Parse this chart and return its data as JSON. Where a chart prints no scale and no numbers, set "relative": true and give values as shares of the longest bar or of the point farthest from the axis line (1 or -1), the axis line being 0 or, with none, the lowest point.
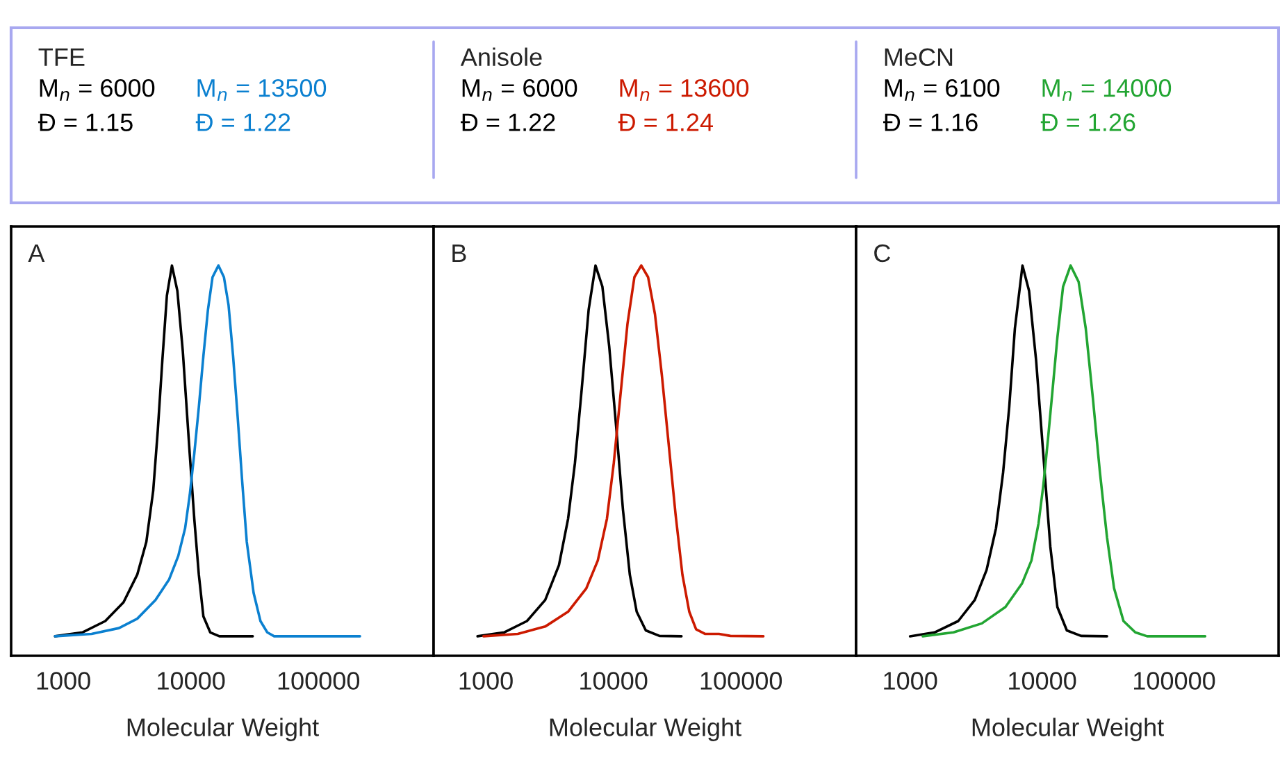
{
  "chart_data": [
    {
      "type": "line",
      "relative": true,
      "log": "x",
      "xlim": [
        390,
        800000
      ],
      "xticks": [
        1000,
        10000,
        100000
      ],
      "xlabel": "Molecular Weight",
      "legend": "top",
      "legend_title": "TFE",
      "annotations": [
        "A"
      ],
      "series": [
        {
          "name": "M$_{n}$ = 6000\nĐ = 1.15",
          "color": "#000000",
          "x": [
            862,
            1413,
            2134,
            2966,
            3800,
            4479,
            5070,
            5503,
            5975,
            6490,
            7107,
            7839,
            8650,
            9795,
            10640,
            11550,
            12540,
            14190,
            16740,
            30550
          ],
          "values": [
            0.05,
            0.06,
            0.089,
            0.137,
            0.208,
            0.292,
            0.423,
            0.577,
            0.756,
            0.923,
            1,
            0.935,
            0.78,
            0.518,
            0.351,
            0.208,
            0.101,
            0.06,
            0.05,
            0.05
          ]
        },
        {
          "name": "M$_{n}$ = 13500\nĐ = 1.22",
          "color": "#0b80d0",
          "x": [
            862,
            1667,
            2733,
            3800,
            5280,
            6761,
            7973,
            9020,
            9795,
            10640,
            11550,
            12540,
            13620,
            14790,
            16460,
            18170,
            19740,
            21430,
            23270,
            25270,
            27440,
            31050,
            35130,
            39720,
            44970,
            211700
          ],
          "values": [
            0.05,
            0.056,
            0.071,
            0.095,
            0.143,
            0.196,
            0.256,
            0.327,
            0.411,
            0.518,
            0.637,
            0.768,
            0.887,
            0.97,
            1,
            0.97,
            0.899,
            0.768,
            0.613,
            0.446,
            0.292,
            0.161,
            0.089,
            0.06,
            0.05,
            0.05
          ]
        }
      ]
    },
    {
      "type": "line",
      "relative": true,
      "log": "x",
      "xlim": [
        390,
        800000
      ],
      "xticks": [
        1000,
        10000,
        100000
      ],
      "xlabel": "Molecular Weight",
      "legend": "top",
      "legend_title": "Anisole",
      "annotations": [
        "B"
      ],
      "series": [
        {
          "name": "M$_{n}$ = 6000\nĐ = 1.22",
          "color": "#000000",
          "x": [
            862,
            1391,
            2102,
            2924,
            3746,
            4418,
            5000,
            5657,
            6404,
            7245,
            8204,
            9285,
            10510,
            11890,
            13460,
            15240,
            17970,
            23010,
            34200
          ],
          "values": [
            0.05,
            0.06,
            0.089,
            0.143,
            0.232,
            0.351,
            0.494,
            0.685,
            0.887,
            1,
            0.946,
            0.792,
            0.589,
            0.375,
            0.208,
            0.113,
            0.065,
            0.051,
            0.05
          ]
        },
        {
          "name": "M$_{n}$ = 13600\nĐ = 1.24",
          "color": "#cc1a00",
          "x": [
            960,
            1782,
            2924,
            4418,
            6145,
            7551,
            8907,
            10080,
            11410,
            12910,
            14620,
            16550,
            18730,
            21200,
            23990,
            27150,
            30730,
            34780,
            39360,
            44540,
            52540,
            67290,
            82740,
            150000
          ],
          "values": [
            0.05,
            0.056,
            0.075,
            0.113,
            0.173,
            0.244,
            0.351,
            0.494,
            0.673,
            0.851,
            0.97,
            1,
            0.97,
            0.875,
            0.72,
            0.542,
            0.363,
            0.208,
            0.113,
            0.068,
            0.056,
            0.056,
            0.051,
            0.05
          ]
        }
      ]
    },
    {
      "type": "line",
      "relative": true,
      "log": "x",
      "xlim": [
        390,
        620000
      ],
      "xticks": [
        1000,
        10000,
        100000
      ],
      "xlabel": "Molecular Weight",
      "legend": "top",
      "legend_title": "MeCN",
      "annotations": [
        "C"
      ],
      "series": [
        {
          "name": "M$_{n}$ = 6100\nĐ = 1.16",
          "color": "#000000",
          "x": [
            1000,
            1535,
            2316,
            3092,
            3800,
            4479,
            5070,
            5639,
            6226,
            7107,
            7973,
            9020,
            10210,
            11550,
            13060,
            15410,
            19740,
            31050
          ],
          "values": [
            0.05,
            0.06,
            0.089,
            0.143,
            0.22,
            0.327,
            0.47,
            0.637,
            0.839,
            1,
            0.935,
            0.756,
            0.518,
            0.28,
            0.125,
            0.065,
            0.051,
            0.05
          ]
        },
        {
          "name": "M$_{n}$ = 14000\nĐ = 1.26",
          "color": "#22a532",
          "x": [
            1249,
            2134,
            3499,
            5280,
            7043,
            8310,
            9400,
            10210,
            11080,
            12040,
            13060,
            14430,
            16460,
            18930,
            21430,
            24250,
            27440,
            31050,
            35130,
            41410,
            50880,
            62520,
            172200
          ],
          "values": [
            0.05,
            0.06,
            0.083,
            0.125,
            0.185,
            0.244,
            0.339,
            0.435,
            0.554,
            0.685,
            0.815,
            0.946,
            1,
            0.958,
            0.839,
            0.661,
            0.47,
            0.304,
            0.173,
            0.089,
            0.06,
            0.05,
            0.05
          ]
        }
      ]
    }
  ]
}
